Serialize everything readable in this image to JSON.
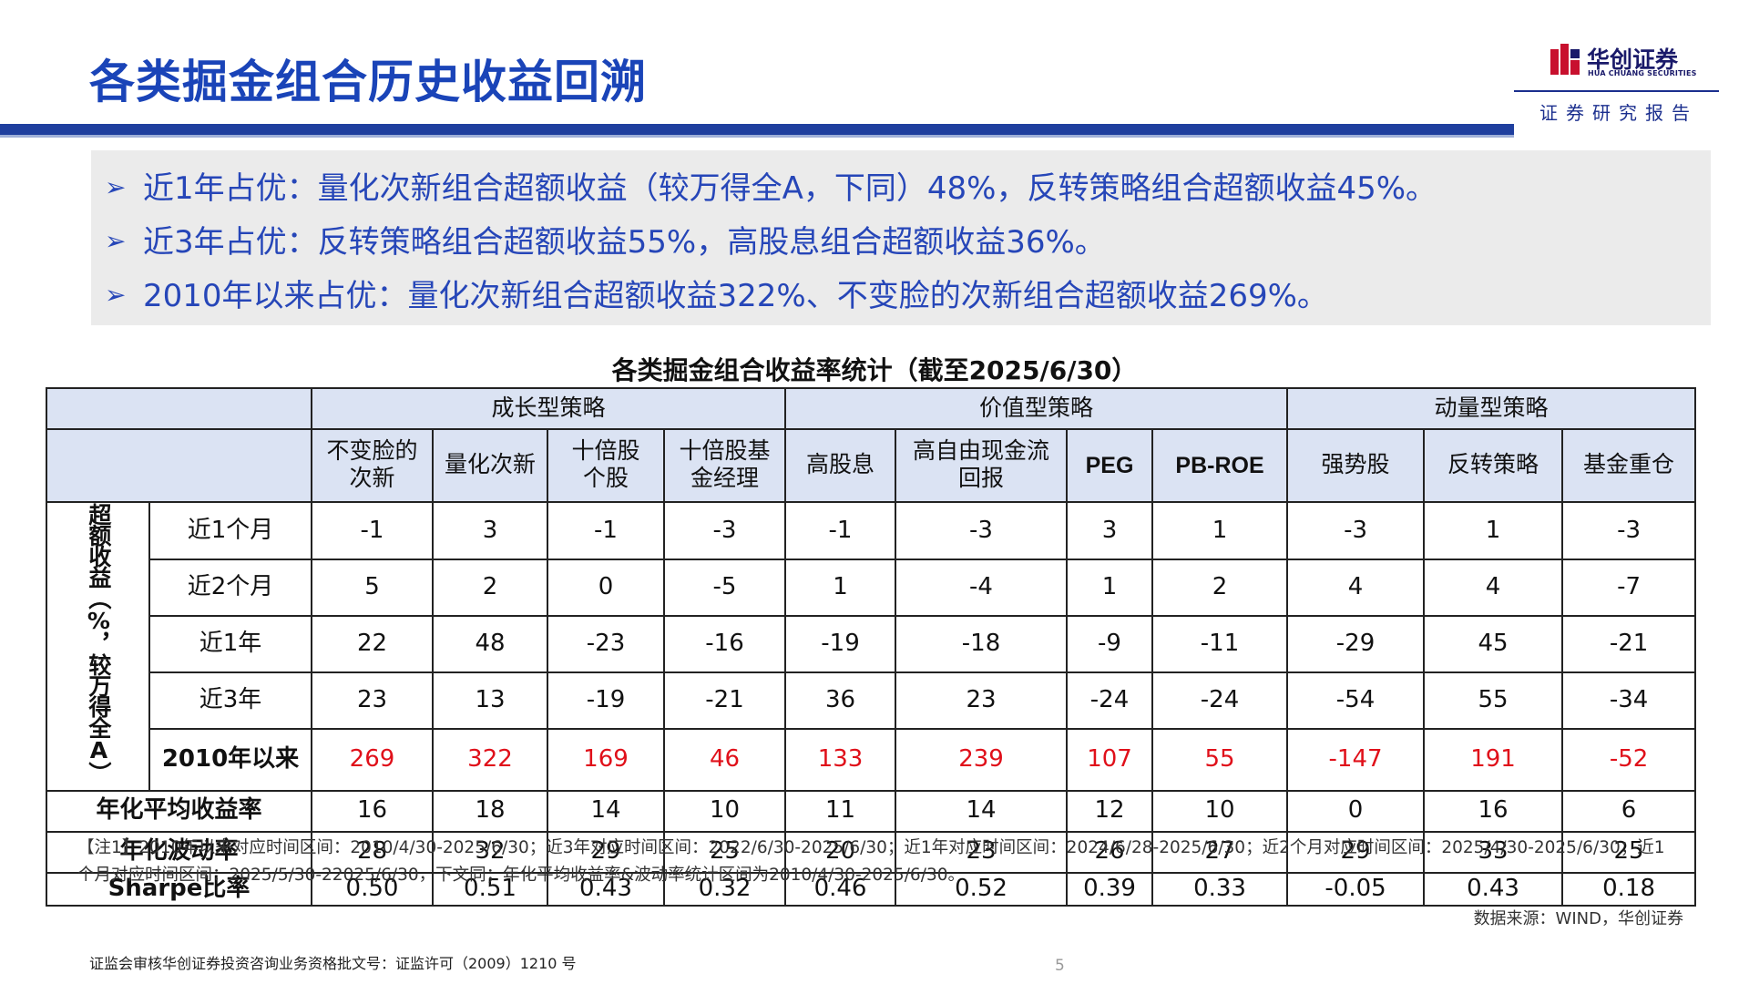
{
  "header": {
    "title": "各类掘金组合历史收益回溯",
    "logo_cn": "华创证券",
    "logo_en": "HUA CHUANG SECURITIES",
    "logo_sub": "证券研究报告",
    "colors": {
      "title": "#1a44b8",
      "band": "#1f3f9e",
      "logo": "#c8102e"
    }
  },
  "bullets": [
    "近1年占优：量化次新组合超额收益（较万得全A，下同）48%，反转策略组合超额收益45%。",
    "近3年占优：反转策略组合超额收益55%，高股息组合超额收益36%。",
    "2010年以来占优：量化次新组合超额收益322%、不变脸的次新组合超额收益269%。"
  ],
  "table": {
    "caption": "各类掘金组合收益率统计（截至2025/6/30）",
    "groups": [
      "成长型策略",
      "价值型策略",
      "动量型策略"
    ],
    "columns": [
      [
        "不变脸的",
        "次新"
      ],
      [
        "量化次新"
      ],
      [
        "十倍股",
        "个股"
      ],
      [
        "十倍股基",
        "金经理"
      ],
      [
        "高股息"
      ],
      [
        "高自由现金流",
        "回报"
      ],
      [
        "PEG"
      ],
      [
        "PB-ROE"
      ],
      [
        "强势股"
      ],
      [
        "反转策略"
      ],
      [
        "基金重仓"
      ]
    ],
    "side_label": "超额收益（%，较万得全A）",
    "excess_rows": [
      {
        "label": "近1个月",
        "values": [
          "-1",
          "3",
          "-1",
          "-3",
          "-1",
          "-3",
          "3",
          "1",
          "-3",
          "1",
          "-3"
        ]
      },
      {
        "label": "近2个月",
        "values": [
          "5",
          "2",
          "0",
          "-5",
          "1",
          "-4",
          "1",
          "2",
          "4",
          "4",
          "-7"
        ]
      },
      {
        "label": "近1年",
        "values": [
          "22",
          "48",
          "-23",
          "-16",
          "-19",
          "-18",
          "-9",
          "-11",
          "-29",
          "45",
          "-21"
        ]
      },
      {
        "label": "近3年",
        "values": [
          "23",
          "13",
          "-19",
          "-21",
          "36",
          "23",
          "-24",
          "-24",
          "-54",
          "55",
          "-34"
        ]
      },
      {
        "label": "2010年以来",
        "values": [
          "269",
          "322",
          "169",
          "46",
          "133",
          "239",
          "107",
          "55",
          "-147",
          "191",
          "-52"
        ],
        "highlight_color": "#e0101a"
      }
    ],
    "stat_rows": [
      {
        "label": "年化平均收益率",
        "values": [
          "16",
          "18",
          "14",
          "10",
          "11",
          "14",
          "12",
          "10",
          "0",
          "16",
          "6"
        ]
      },
      {
        "label": "年化波动率",
        "values": [
          "28",
          "32",
          "29",
          "25",
          "20",
          "23",
          "26",
          "27",
          "29",
          "33",
          "25"
        ]
      },
      {
        "label": "Sharpe比率",
        "values": [
          "0.50",
          "0.51",
          "0.43",
          "0.32",
          "0.46",
          "0.52",
          "0.39",
          "0.33",
          "-0.05",
          "0.43",
          "0.18"
        ]
      }
    ]
  },
  "note": "【注1】2010年以来对应时间区间：2010/4/30-2025/6/30；近3年对应时间区间：2022/6/30-2025/6/30；近1年对应时间区间：2024/6/28-2025/6/30；近2个月对应时间区间：2025/4/30-2025/6/30；近1个月对应时间区间：2025/5/30-22025/6/30，下文同；年化平均收益率&波动率统计区间为2010/4/30-2025/6/30。",
  "source": "数据来源：WIND，华创证券",
  "license": "证监会审核华创证券投资咨询业务资格批文号：证监许可（2009）1210 号",
  "page_number": "5"
}
